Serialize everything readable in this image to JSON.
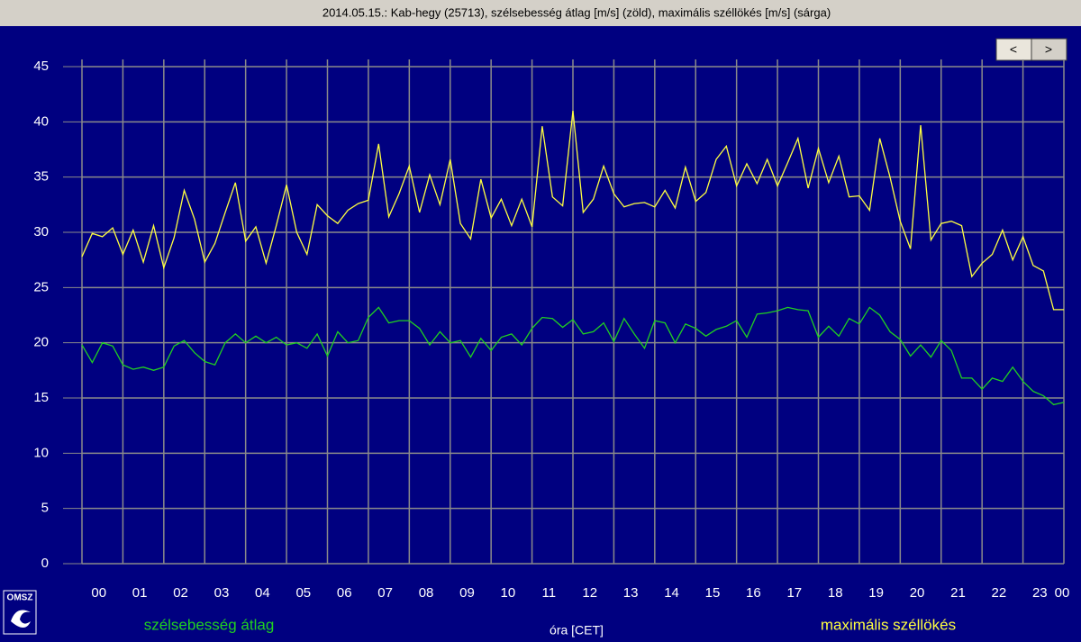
{
  "chart_data": {
    "type": "line",
    "title": "2014.05.15.: Kab-hegy  (25713), szélsebesség átlag [m/s] (zöld), maximális széllökés [m/s] (sárga)",
    "x_label": "óra [CET]",
    "categories": [
      "00",
      "01",
      "02",
      "03",
      "04",
      "05",
      "06",
      "07",
      "08",
      "09",
      "10",
      "11",
      "12",
      "13",
      "14",
      "15",
      "16",
      "17",
      "18",
      "19",
      "20",
      "21",
      "22",
      "23"
    ],
    "x_end_label": "00",
    "x": [
      0,
      0.25,
      0.5,
      0.75,
      1,
      1.25,
      1.5,
      1.75,
      2,
      2.25,
      2.5,
      2.75,
      3,
      3.25,
      3.5,
      3.75,
      4,
      4.25,
      4.5,
      4.75,
      5,
      5.25,
      5.5,
      5.75,
      6,
      6.25,
      6.5,
      6.75,
      7,
      7.25,
      7.5,
      7.75,
      8,
      8.25,
      8.5,
      8.75,
      9,
      9.25,
      9.5,
      9.75,
      10,
      10.25,
      10.5,
      10.75,
      11,
      11.25,
      11.5,
      11.75,
      12,
      12.25,
      12.5,
      12.75,
      13,
      13.25,
      13.5,
      13.75,
      14,
      14.25,
      14.5,
      14.75,
      15,
      15.25,
      15.5,
      15.75,
      16,
      16.25,
      16.5,
      16.75,
      17,
      17.25,
      17.5,
      17.75,
      18,
      18.25,
      18.5,
      18.75,
      19,
      19.25,
      19.5,
      19.75,
      20,
      20.25,
      20.5,
      20.75,
      21,
      21.25,
      21.5,
      21.75,
      22,
      22.25,
      22.5,
      22.75,
      23,
      23.25,
      23.5,
      23.75,
      24
    ],
    "xlim": [
      0,
      24
    ],
    "xticks": [
      1,
      2,
      3,
      4,
      5,
      6,
      7,
      8,
      9,
      10,
      11,
      12,
      13,
      14,
      15,
      16,
      17,
      18,
      19,
      20,
      21,
      22,
      23,
      24
    ],
    "ylim": [
      0,
      45
    ],
    "yticks": [
      0,
      5,
      10,
      15,
      20,
      25,
      30,
      35,
      40,
      45
    ],
    "grid": true,
    "series": [
      {
        "name": "szélsebesség átlag",
        "color": "#20d020",
        "values": [
          19.8,
          18.2,
          20.0,
          19.7,
          18.0,
          17.6,
          17.8,
          17.5,
          17.8,
          19.7,
          20.2,
          19.1,
          18.3,
          18.0,
          20.0,
          20.8,
          20.0,
          20.6,
          20.0,
          20.5,
          19.8,
          20.0,
          19.5,
          20.8,
          18.8,
          21.0,
          20.0,
          20.2,
          22.3,
          23.2,
          21.8,
          22.0,
          22.0,
          21.3,
          19.8,
          21.0,
          20.0,
          20.2,
          18.7,
          20.4,
          19.3,
          20.5,
          20.8,
          19.8,
          21.3,
          22.3,
          22.2,
          21.4,
          22.1,
          20.8,
          21.0,
          21.8,
          20.1,
          22.2,
          20.8,
          19.5,
          22.0,
          21.8,
          20.0,
          21.7,
          21.3,
          20.6,
          21.2,
          21.5,
          22.0,
          20.5,
          22.6,
          22.7,
          22.9,
          23.2,
          23.0,
          22.9,
          20.5,
          21.5,
          20.6,
          22.2,
          21.7,
          23.2,
          22.5,
          21.0,
          20.3,
          18.8,
          19.8,
          18.7,
          20.2,
          19.3,
          16.8,
          16.8,
          15.8,
          16.8,
          16.5,
          17.8,
          16.5,
          15.6,
          15.2,
          14.4,
          14.6
        ]
      },
      {
        "name": "maximális széllökés",
        "color": "#ffff40",
        "values": [
          27.8,
          29.9,
          29.6,
          30.4,
          28.0,
          30.2,
          27.3,
          30.6,
          26.8,
          29.5,
          33.8,
          31.2,
          27.3,
          29.0,
          31.8,
          34.5,
          29.2,
          30.5,
          27.2,
          30.6,
          34.3,
          30.0,
          28.0,
          32.5,
          31.5,
          30.8,
          32.0,
          32.6,
          32.9,
          38.0,
          31.4,
          33.5,
          36.0,
          31.8,
          35.2,
          32.5,
          36.6,
          30.8,
          29.4,
          34.8,
          31.3,
          33.0,
          30.6,
          33.0,
          30.5,
          39.6,
          33.2,
          32.4,
          41.0,
          31.8,
          33.0,
          36.0,
          33.5,
          32.3,
          32.6,
          32.7,
          32.3,
          33.8,
          32.2,
          35.9,
          32.8,
          33.6,
          36.6,
          37.8,
          34.2,
          36.2,
          34.4,
          36.6,
          34.2,
          36.3,
          38.5,
          34.0,
          37.6,
          34.5,
          36.9,
          33.2,
          33.3,
          32.0,
          38.5,
          35.0,
          31.0,
          28.5,
          39.7,
          29.3,
          30.8,
          31.0,
          30.6,
          26.0,
          27.2,
          28.0,
          30.2,
          27.5,
          29.6,
          27.0,
          26.5,
          23.0,
          23.0
        ]
      }
    ],
    "buttons": [
      "<",
      ">"
    ],
    "logo": "OMSZ"
  }
}
